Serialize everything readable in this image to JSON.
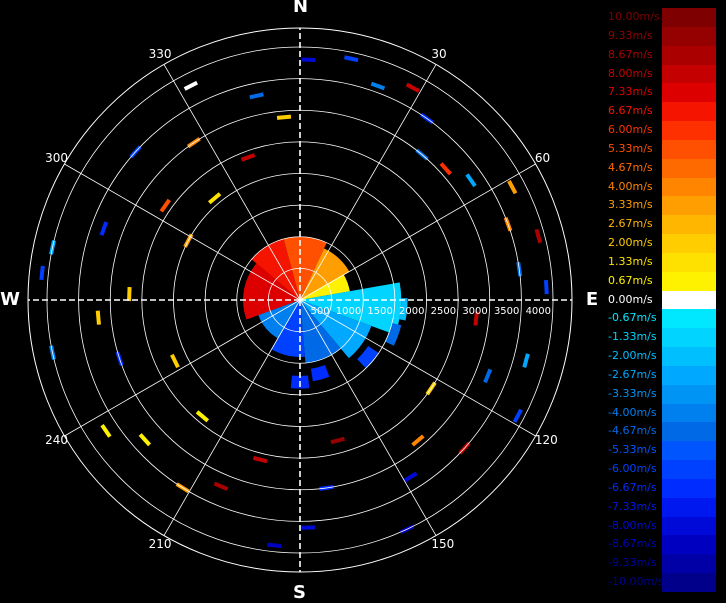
{
  "chart_data": {
    "type": "polar-radar-velocity",
    "cardinals": [
      "N",
      "E",
      "S",
      "W"
    ],
    "azimuth_labels": [
      "30",
      "60",
      "120",
      "150",
      "210",
      "240",
      "300",
      "330"
    ],
    "range_labels": [
      "500",
      "1000",
      "1500",
      "2000",
      "2500",
      "3000",
      "3500",
      "4000"
    ],
    "range_max": 4300,
    "ring_ranges": [
      500,
      1000,
      1500,
      2000,
      2500,
      3000,
      3500,
      4000
    ],
    "grid": true,
    "legend": {
      "placement": "right",
      "entries": [
        {
          "label": "10.00m/s",
          "value": 10.0,
          "color": "#7f0000"
        },
        {
          "label": "9.33m/s",
          "value": 9.33,
          "color": "#950000"
        },
        {
          "label": "8.67m/s",
          "value": 8.67,
          "color": "#ab0000"
        },
        {
          "label": "8.00m/s",
          "value": 8.0,
          "color": "#c40000"
        },
        {
          "label": "7.33m/s",
          "value": 7.33,
          "color": "#dd0000"
        },
        {
          "label": "6.67m/s",
          "value": 6.67,
          "color": "#f41400"
        },
        {
          "label": "6.00m/s",
          "value": 6.0,
          "color": "#ff3000"
        },
        {
          "label": "5.33m/s",
          "value": 5.33,
          "color": "#ff4f00"
        },
        {
          "label": "4.67m/s",
          "value": 4.67,
          "color": "#ff6a00"
        },
        {
          "label": "4.00m/s",
          "value": 4.0,
          "color": "#ff8400"
        },
        {
          "label": "3.33m/s",
          "value": 3.33,
          "color": "#ff9e00"
        },
        {
          "label": "2.67m/s",
          "value": 2.67,
          "color": "#ffb600"
        },
        {
          "label": "2.00m/s",
          "value": 2.0,
          "color": "#ffcd00"
        },
        {
          "label": "1.33m/s",
          "value": 1.33,
          "color": "#ffe100"
        },
        {
          "label": "0.67m/s",
          "value": 0.67,
          "color": "#fff200"
        },
        {
          "label": "0.00m/s",
          "value": 0.0,
          "color": "#ffffff"
        },
        {
          "label": "-0.67m/s",
          "value": -0.67,
          "color": "#00e8ff"
        },
        {
          "label": "-1.33m/s",
          "value": -1.33,
          "color": "#00d4ff"
        },
        {
          "label": "-2.00m/s",
          "value": -2.0,
          "color": "#00bfff"
        },
        {
          "label": "-2.67m/s",
          "value": -2.67,
          "color": "#00a8ff"
        },
        {
          "label": "-3.33m/s",
          "value": -3.33,
          "color": "#0094f4"
        },
        {
          "label": "-4.00m/s",
          "value": -4.0,
          "color": "#007fee"
        },
        {
          "label": "-4.67m/s",
          "value": -4.67,
          "color": "#006ae6"
        },
        {
          "label": "-5.33m/s",
          "value": -5.33,
          "color": "#0055ff"
        },
        {
          "label": "-6.00m/s",
          "value": -6.0,
          "color": "#0040ff"
        },
        {
          "label": "-6.67m/s",
          "value": -6.67,
          "color": "#002cff"
        },
        {
          "label": "-7.33m/s",
          "value": -7.33,
          "color": "#0018f0"
        },
        {
          "label": "-8.00m/s",
          "value": -8.0,
          "color": "#000ad8"
        },
        {
          "label": "-8.67m/s",
          "value": -8.67,
          "color": "#0000c0"
        },
        {
          "label": "-9.33m/s",
          "value": -9.33,
          "color": "#0000a6"
        },
        {
          "label": "-10.00m/s",
          "value": -10.0,
          "color": "#00008a"
        }
      ]
    },
    "core_echo": {
      "range_max": 1700,
      "sectors": [
        {
          "az_from": 250,
          "az_to": 310,
          "range_to": 900,
          "value": 7.0
        },
        {
          "az_from": 310,
          "az_to": 345,
          "range_to": 1000,
          "value": 6.5
        },
        {
          "az_from": 345,
          "az_to": 25,
          "range_to": 1000,
          "value": 5.5
        },
        {
          "az_from": 25,
          "az_to": 60,
          "range_to": 900,
          "value": 3.0
        },
        {
          "az_from": 60,
          "az_to": 80,
          "range_to": 800,
          "value": 0.5
        },
        {
          "az_from": 80,
          "az_to": 110,
          "range_to": 1600,
          "value": -1.5
        },
        {
          "az_from": 110,
          "az_to": 140,
          "range_to": 1200,
          "value": -3.0
        },
        {
          "az_from": 140,
          "az_to": 175,
          "range_to": 1000,
          "value": -4.5
        },
        {
          "az_from": 175,
          "az_to": 210,
          "range_to": 900,
          "value": -6.0
        },
        {
          "az_from": 210,
          "az_to": 250,
          "range_to": 700,
          "value": -4.0
        }
      ]
    },
    "echo_arcs": [
      {
        "az": 95,
        "range_from": 1600,
        "range_to": 1700,
        "value": -2.0
      },
      {
        "az": 110,
        "range_from": 1500,
        "range_to": 1650,
        "value": -5.0
      },
      {
        "az": 130,
        "range_from": 1300,
        "range_to": 1500,
        "value": -6.0
      },
      {
        "az": 165,
        "range_from": 1100,
        "range_to": 1300,
        "value": -6.5
      },
      {
        "az": 180,
        "range_from": 1200,
        "range_to": 1400,
        "value": -7.0
      }
    ],
    "scatter_gates": [
      {
        "az": 2,
        "range": 3800,
        "value": -8.0
      },
      {
        "az": 12,
        "range": 3900,
        "value": -6.0
      },
      {
        "az": 20,
        "range": 3600,
        "value": -4.0
      },
      {
        "az": 28,
        "range": 3800,
        "value": 8.0
      },
      {
        "az": 35,
        "range": 3500,
        "value": -7.0
      },
      {
        "az": 40,
        "range": 3000,
        "value": -5.0
      },
      {
        "az": 48,
        "range": 3100,
        "value": 6.0
      },
      {
        "az": 55,
        "range": 3300,
        "value": -3.0
      },
      {
        "az": 62,
        "range": 3800,
        "value": 3.0
      },
      {
        "az": 70,
        "range": 3500,
        "value": 4.0
      },
      {
        "az": 75,
        "range": 3900,
        "value": 8.5
      },
      {
        "az": 82,
        "range": 3500,
        "value": -5.0
      },
      {
        "az": 87,
        "range": 3900,
        "value": -6.0
      },
      {
        "az": 96,
        "range": 2800,
        "value": 8.0
      },
      {
        "az": 105,
        "range": 3700,
        "value": -3.0
      },
      {
        "az": 112,
        "range": 3200,
        "value": -5.0
      },
      {
        "az": 118,
        "range": 3900,
        "value": -6.0
      },
      {
        "az": 124,
        "range": 2500,
        "value": 2.0
      },
      {
        "az": 132,
        "range": 3500,
        "value": 8.0
      },
      {
        "az": 140,
        "range": 2900,
        "value": 4.0
      },
      {
        "az": 148,
        "range": 3300,
        "value": -8.0
      },
      {
        "az": 155,
        "range": 4000,
        "value": -8.5
      },
      {
        "az": 165,
        "range": 2300,
        "value": 9.0
      },
      {
        "az": 172,
        "range": 3000,
        "value": -7.0
      },
      {
        "az": 178,
        "range": 3600,
        "value": -8.0
      },
      {
        "az": 186,
        "range": 3900,
        "value": -9.0
      },
      {
        "az": 194,
        "range": 2600,
        "value": 8.0
      },
      {
        "az": 203,
        "range": 3200,
        "value": 8.5
      },
      {
        "az": 212,
        "range": 3500,
        "value": 3.0
      },
      {
        "az": 220,
        "range": 2400,
        "value": 1.0
      },
      {
        "az": 228,
        "range": 3300,
        "value": 0.5
      },
      {
        "az": 236,
        "range": 3700,
        "value": 1.0
      },
      {
        "az": 244,
        "range": 2200,
        "value": 2.0
      },
      {
        "az": 252,
        "range": 3000,
        "value": -7.0
      },
      {
        "az": 258,
        "range": 4000,
        "value": -4.0
      },
      {
        "az": 265,
        "range": 3200,
        "value": 2.0
      },
      {
        "az": 272,
        "range": 2700,
        "value": 2.0
      },
      {
        "az": 276,
        "range": 4100,
        "value": -6.0
      },
      {
        "az": 282,
        "range": 4000,
        "value": -3.0
      },
      {
        "az": 290,
        "range": 3300,
        "value": -7.0
      },
      {
        "az": 298,
        "range": 2000,
        "value": 3.0
      },
      {
        "az": 305,
        "range": 2600,
        "value": 5.0
      },
      {
        "az": 312,
        "range": 3500,
        "value": -6.0
      },
      {
        "az": 320,
        "range": 2100,
        "value": 1.5
      },
      {
        "az": 326,
        "range": 3000,
        "value": 4.0
      },
      {
        "az": 333,
        "range": 3800,
        "value": 0.0
      },
      {
        "az": 340,
        "range": 2400,
        "value": 8.0
      },
      {
        "az": 348,
        "range": 3300,
        "value": -5.0
      },
      {
        "az": 355,
        "range": 2900,
        "value": 2.0
      }
    ]
  }
}
